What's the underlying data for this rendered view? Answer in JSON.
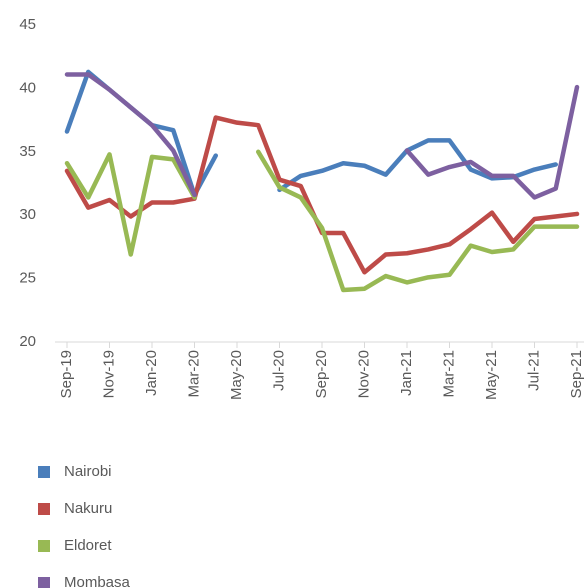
{
  "chart_data": {
    "type": "line",
    "categories": [
      "Sep-19",
      null,
      "Nov-19",
      null,
      "Jan-20",
      null,
      "Mar-20",
      null,
      "May-20",
      null,
      "Jul-20",
      null,
      "Sep-20",
      null,
      "Nov-20",
      null,
      "Jan-21",
      null,
      "Mar-21",
      null,
      "May-21",
      null,
      "Jul-21",
      null,
      "Sep-21"
    ],
    "ylim": [
      20,
      45
    ],
    "yticks": [
      20,
      25,
      30,
      35,
      40,
      45
    ],
    "grid": false,
    "legend": "bottom",
    "series": [
      {
        "name": "Nairobi",
        "color": "#4a7ebb",
        "values": [
          36.6,
          41.3,
          39.9,
          38.5,
          37.1,
          36.7,
          31.6,
          34.7,
          null,
          null,
          32.0,
          33.1,
          33.5,
          34.1,
          33.9,
          33.2,
          35.1,
          35.9,
          35.9,
          33.6,
          32.9,
          33.0,
          33.6,
          34.0,
          null
        ]
      },
      {
        "name": "Nakuru",
        "color": "#be4b48",
        "values": [
          33.5,
          30.6,
          31.2,
          29.9,
          31.0,
          31.0,
          31.3,
          37.7,
          37.3,
          37.1,
          32.8,
          32.3,
          28.6,
          28.6,
          25.5,
          26.9,
          27.0,
          27.3,
          27.7,
          28.9,
          30.2,
          27.9,
          29.7,
          29.9,
          30.1
        ]
      },
      {
        "name": "Eldoret",
        "color": "#98b954",
        "values": [
          34.1,
          31.4,
          34.8,
          26.9,
          34.6,
          34.4,
          31.4,
          null,
          null,
          35.0,
          32.2,
          31.4,
          29.0,
          24.1,
          24.2,
          25.2,
          24.7,
          25.1,
          25.3,
          27.6,
          27.1,
          27.3,
          29.1,
          29.1,
          29.1
        ]
      },
      {
        "name": "Mombasa",
        "color": "#7d60a0",
        "values": [
          41.1,
          41.1,
          39.9,
          38.5,
          37.1,
          35.1,
          31.6,
          null,
          null,
          null,
          null,
          null,
          null,
          null,
          null,
          null,
          35.1,
          33.2,
          33.8,
          34.2,
          33.1,
          33.1,
          31.4,
          32.1,
          40.1
        ]
      }
    ]
  }
}
